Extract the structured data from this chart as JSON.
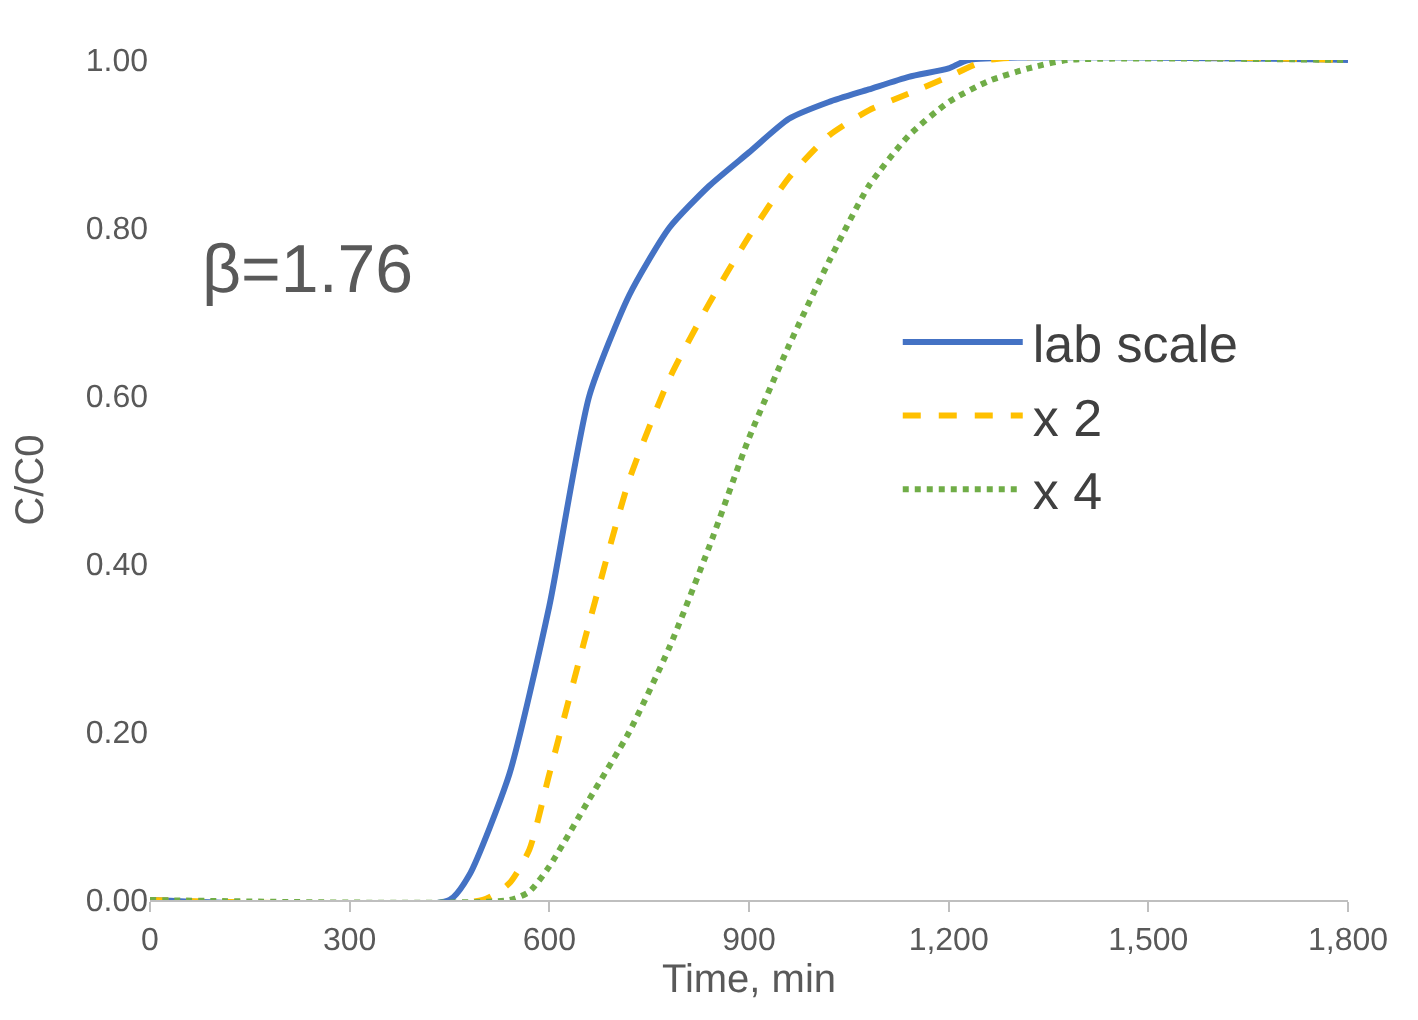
{
  "chart_data": {
    "type": "line",
    "xlabel": "Time, min",
    "ylabel": "C/C0",
    "annotations": [
      "β=1.76"
    ],
    "xlim": [
      0,
      1800
    ],
    "xticks": [
      0,
      300,
      600,
      900,
      {
        "value": 1200,
        "label": "1,200"
      },
      {
        "value": 1500,
        "label": "1,500"
      },
      {
        "value": 1800,
        "label": "1,800"
      }
    ],
    "ylim": [
      0,
      1
    ],
    "yticks": [
      {
        "value": 0,
        "label": "0.00"
      },
      {
        "value": 0.2,
        "label": "0.20"
      },
      {
        "value": 0.4,
        "label": "0.40"
      },
      {
        "value": 0.6,
        "label": "0.60"
      },
      {
        "value": 0.8,
        "label": "0.80"
      },
      {
        "value": 1,
        "label": "1.00"
      }
    ],
    "legend": "right",
    "series": [
      {
        "name": "lab scale",
        "color": "#4472c4",
        "line_style": "solid",
        "x": [
          0,
          450,
          480,
          540,
          600,
          660,
          720,
          780,
          840,
          900,
          960,
          1020,
          1080,
          1140,
          1200,
          1230,
          1800
        ],
        "values": [
          0,
          0,
          0.03,
          0.15,
          0.35,
          0.6,
          0.72,
          0.8,
          0.85,
          0.89,
          0.93,
          0.95,
          0.965,
          0.98,
          0.99,
          1,
          1
        ]
      },
      {
        "name": "x 2",
        "color": "#ffc000",
        "line_style": "dashed",
        "x": [
          0,
          500,
          540,
          570,
          600,
          660,
          720,
          780,
          840,
          900,
          960,
          1020,
          1080,
          1140,
          1200,
          1260,
          1800
        ],
        "values": [
          0,
          0,
          0.02,
          0.06,
          0.15,
          0.33,
          0.5,
          0.62,
          0.71,
          0.79,
          0.86,
          0.91,
          0.94,
          0.96,
          0.98,
          1,
          1
        ]
      },
      {
        "name": "x 4",
        "color": "#70ad47",
        "line_style": "dotted",
        "x": [
          0,
          540,
          570,
          600,
          660,
          720,
          780,
          840,
          900,
          960,
          1020,
          1080,
          1140,
          1200,
          1260,
          1320,
          1380,
          1800
        ],
        "values": [
          0,
          0,
          0.01,
          0.04,
          0.12,
          0.2,
          0.3,
          0.42,
          0.55,
          0.66,
          0.76,
          0.85,
          0.91,
          0.95,
          0.975,
          0.99,
          1,
          1
        ]
      }
    ]
  }
}
